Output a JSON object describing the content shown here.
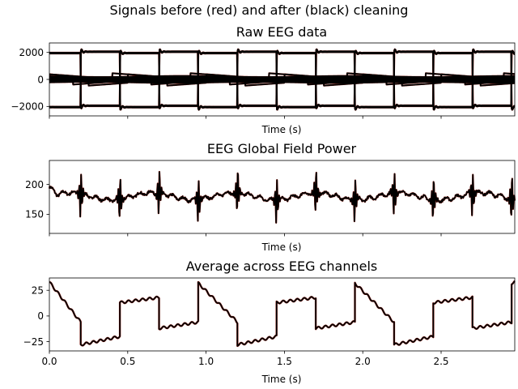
{
  "figure": {
    "suptitle": "Signals before (red) and after (black) cleaning"
  },
  "colors": {
    "before": "#8b1a10",
    "after": "#000000"
  },
  "chart_data": [
    {
      "type": "line",
      "title": "Raw EEG data",
      "xlabel": "Time (s)",
      "ylabel": "",
      "xlim": [
        0,
        2.97
      ],
      "ylim": [
        -2700,
        2700
      ],
      "yticks": [
        -2000,
        0,
        2000
      ],
      "ytick_labels": [
        "−2000",
        "0",
        "2000"
      ],
      "xticks": [
        0,
        0.5,
        1.0,
        1.5,
        2.0,
        2.5
      ],
      "xtick_labels_visible": false,
      "series": [
        {
          "group": "square",
          "level": 1950,
          "phase": 0.0,
          "count": 2
        },
        {
          "group": "square",
          "level": 2050,
          "phase": 0.25,
          "count": 2
        },
        {
          "group": "slow",
          "level": 420,
          "count": 2
        },
        {
          "group": "flat",
          "level": 80,
          "count": 10
        }
      ]
    },
    {
      "type": "line",
      "title": "EEG Global Field Power",
      "xlabel": "Time (s)",
      "ylabel": "",
      "xlim": [
        0,
        2.97
      ],
      "ylim": [
        118,
        240
      ],
      "yticks": [
        150,
        200
      ],
      "ytick_labels": [
        "150",
        "200"
      ],
      "xticks": [
        0,
        0.5,
        1.0,
        1.5,
        2.0,
        2.5
      ],
      "xtick_labels_visible": false,
      "baseline": 180,
      "spike_times": [
        0.2,
        0.45,
        0.7,
        0.95,
        1.2,
        1.45,
        1.7,
        1.95,
        2.2,
        2.45,
        2.7,
        2.95
      ],
      "spike_max": 228,
      "spike_min": 128
    },
    {
      "type": "line",
      "title": "Average across EEG channels",
      "xlabel": "Time (s)",
      "ylabel": "",
      "xlim": [
        0,
        2.97
      ],
      "ylim": [
        -34,
        37
      ],
      "yticks": [
        -25,
        0,
        25
      ],
      "ytick_labels": [
        "−25",
        "0",
        "25"
      ],
      "xticks": [
        0,
        0.5,
        1.0,
        1.5,
        2.0,
        2.5
      ],
      "xtick_labels": [
        "0.0",
        "0.5",
        "1.0",
        "1.5",
        "2.0",
        "2.5"
      ],
      "xtick_labels_visible": true,
      "cycle_levels": [
        {
          "t0": 0.0,
          "v0": 33,
          "t1": 0.2,
          "v1": -6
        },
        {
          "t0": 0.2,
          "v0": -28,
          "t1": 0.45,
          "v1": -20
        },
        {
          "t0": 0.45,
          "v0": 13,
          "t1": 0.7,
          "v1": 18
        },
        {
          "t0": 0.7,
          "v0": -12,
          "t1": 0.95,
          "v1": -6
        },
        {
          "t0": 0.95,
          "v0": 32,
          "t1": 1.2,
          "v1": -6
        },
        {
          "t0": 1.2,
          "v0": -28,
          "t1": 1.45,
          "v1": -20
        },
        {
          "t0": 1.45,
          "v0": 13,
          "t1": 1.7,
          "v1": 18
        },
        {
          "t0": 1.7,
          "v0": -12,
          "t1": 1.95,
          "v1": -6
        },
        {
          "t0": 1.95,
          "v0": 32,
          "t1": 2.2,
          "v1": -6
        },
        {
          "t0": 2.2,
          "v0": -28,
          "t1": 2.45,
          "v1": -20
        },
        {
          "t0": 2.45,
          "v0": 13,
          "t1": 2.7,
          "v1": 18
        },
        {
          "t0": 2.7,
          "v0": -12,
          "t1": 2.95,
          "v1": -6
        },
        {
          "t0": 2.95,
          "v0": 32,
          "t1": 2.97,
          "v1": 33
        }
      ]
    }
  ]
}
